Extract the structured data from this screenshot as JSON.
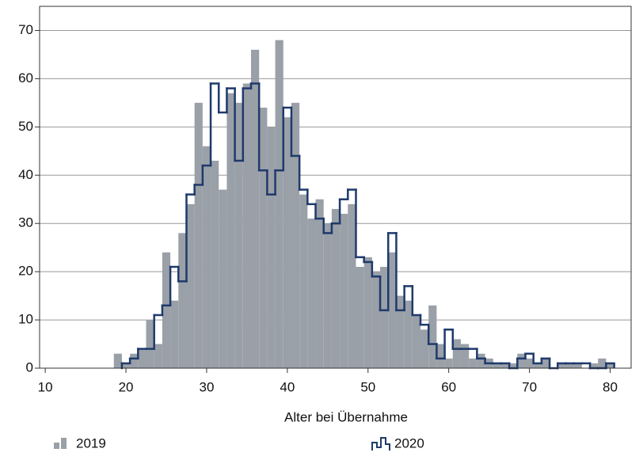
{
  "chart_data": {
    "type": "histogram",
    "xlabel": "Alter bei Übernahme",
    "xlim": [
      9.3,
      82.6
    ],
    "ylim": [
      0,
      75
    ],
    "xticks": [
      10,
      20,
      30,
      40,
      50,
      60,
      70,
      80
    ],
    "yticks": [
      0,
      10,
      20,
      30,
      40,
      50,
      60,
      70
    ],
    "grid": true,
    "legend": "bottom",
    "series": [
      {
        "name": "2019",
        "color": "#9aa0a8",
        "style": "bars",
        "bins": [
          18.5,
          19.5,
          20.5,
          21.5,
          22.5,
          23.5,
          24.5,
          25.5,
          26.5,
          27.5,
          28.5,
          29.5,
          30.5,
          31.5,
          32.5,
          33.5,
          34.5,
          35.5,
          36.5,
          37.5,
          38.5,
          39.5,
          40.5,
          41.5,
          42.5,
          43.5,
          44.5,
          45.5,
          46.5,
          47.5,
          48.5,
          49.5,
          50.5,
          51.5,
          52.5,
          53.5,
          54.5,
          55.5,
          56.5,
          57.5,
          58.5,
          59.5,
          60.5,
          61.5,
          62.5,
          63.5,
          64.5,
          65.5,
          66.5,
          67.5,
          68.5,
          69.5,
          70.5,
          71.5,
          72.5,
          73.5,
          74.5,
          75.5,
          76.5,
          77.5,
          78.5,
          79.5,
          80.5
        ],
        "values": [
          3,
          1,
          3,
          4,
          10,
          5,
          24,
          14,
          28,
          34,
          55,
          46,
          43,
          37,
          57,
          55,
          59,
          66,
          54,
          50,
          68,
          52,
          55,
          36,
          31,
          35,
          30,
          33,
          32,
          34,
          21,
          23,
          20,
          21,
          24,
          15,
          14,
          11,
          8,
          13,
          5,
          2,
          6,
          5,
          2,
          3,
          2,
          1,
          1,
          1,
          3,
          2,
          1,
          2,
          0,
          1,
          1,
          1,
          0,
          1,
          2,
          1
        ]
      },
      {
        "name": "2020",
        "color": "#1f3a6b",
        "style": "step",
        "bins": [
          19.5,
          20.5,
          21.5,
          22.5,
          23.5,
          24.5,
          25.5,
          26.5,
          27.5,
          28.5,
          29.5,
          30.5,
          31.5,
          32.5,
          33.5,
          34.5,
          35.5,
          36.5,
          37.5,
          38.5,
          39.5,
          40.5,
          41.5,
          42.5,
          43.5,
          44.5,
          45.5,
          46.5,
          47.5,
          48.5,
          49.5,
          50.5,
          51.5,
          52.5,
          53.5,
          54.5,
          55.5,
          56.5,
          57.5,
          58.5,
          59.5,
          60.5,
          61.5,
          62.5,
          63.5,
          64.5,
          65.5,
          66.5,
          67.5,
          68.5,
          69.5,
          70.5,
          71.5,
          72.5,
          73.5,
          74.5,
          75.5,
          76.5,
          77.5,
          78.5,
          79.5,
          80.5
        ],
        "values": [
          1,
          2,
          4,
          4,
          11,
          13,
          21,
          18,
          36,
          38,
          42,
          59,
          53,
          58,
          43,
          58,
          59,
          41,
          36,
          41,
          54,
          44,
          37,
          34,
          31,
          28,
          30,
          35,
          37,
          23,
          22,
          19,
          12,
          28,
          12,
          17,
          11,
          9,
          5,
          2,
          8,
          4,
          4,
          4,
          2,
          1,
          1,
          1,
          0,
          2,
          3,
          1,
          2,
          0,
          1,
          1,
          1,
          1,
          0,
          0,
          1
        ]
      }
    ]
  }
}
